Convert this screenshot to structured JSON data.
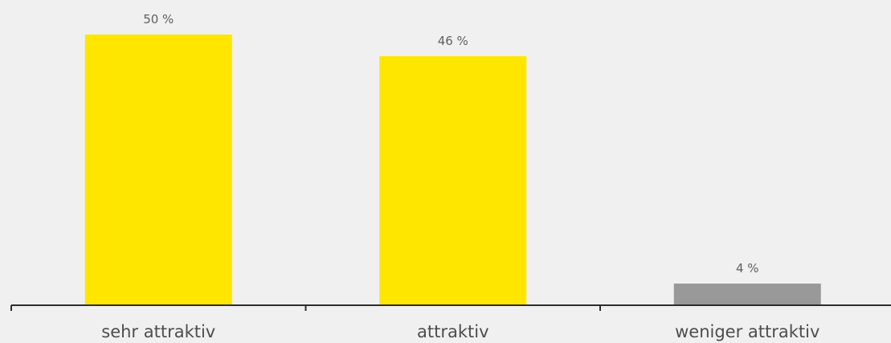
{
  "chart_data": {
    "type": "bar",
    "categories": [
      "sehr attraktiv",
      "attraktiv",
      "weniger attraktiv"
    ],
    "values": [
      50,
      46,
      4
    ],
    "value_labels": [
      "50 %",
      "46 %",
      "4 %"
    ],
    "bar_colors": [
      "#ffe600",
      "#ffe600",
      "#999999"
    ],
    "axis_color": "#2e2e2e",
    "ylim": [
      0,
      50
    ],
    "grid": false,
    "title": "",
    "xlabel": "",
    "ylabel": ""
  }
}
